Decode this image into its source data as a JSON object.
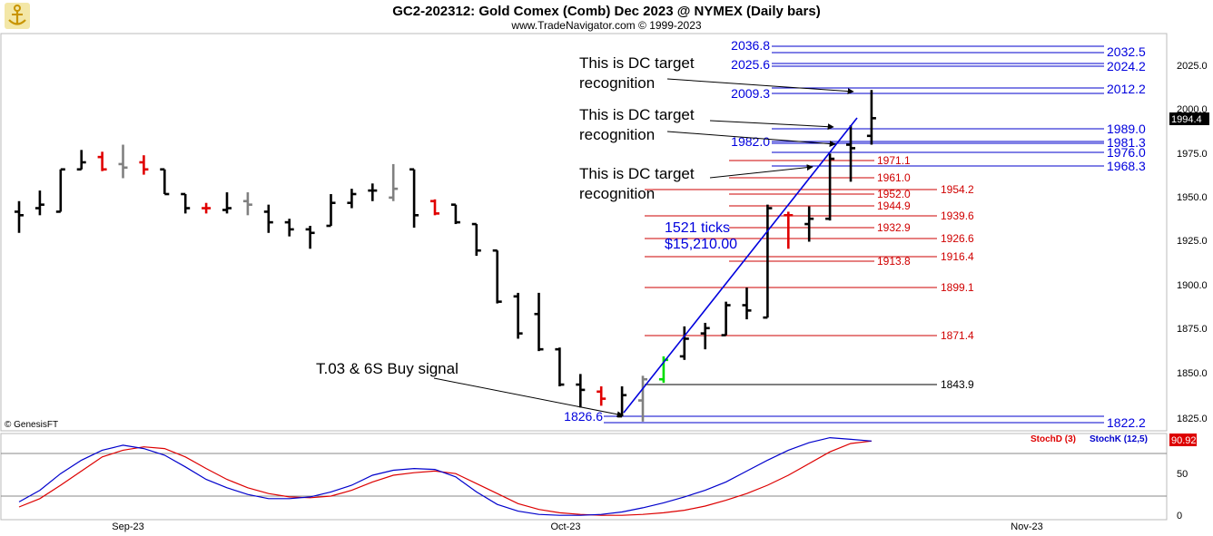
{
  "header": {
    "title": "GC2-202312:  Gold Comex (Comb) Dec 2023 @ NYMEX  (Daily bars)",
    "subtitle": "www.TradeNavigator.com © 1999-2023",
    "logo_icon": "ship-anchor-logo-icon"
  },
  "footer_credit": "© GenesisFT",
  "colors": {
    "bar_default": "#000000",
    "bar_down": "#e00000",
    "bar_up": "#00dd00",
    "bar_neutral": "#808080",
    "target_line": "#0000cc",
    "support_line": "#cc0000",
    "trend_line": "#0000dd",
    "stoch_d": "#dd0000",
    "stoch_k": "#0000cc",
    "last_price_bg": "#000000",
    "stoch_last_bg": "#dd0000"
  },
  "chart_data": [
    {
      "type": "ohlc",
      "yaxis_ticks": [
        "2025.0",
        "2000.0",
        "1975.0",
        "1950.0",
        "1925.0",
        "1900.0",
        "1875.0",
        "1850.0",
        "1825.0"
      ],
      "ylim": [
        1815,
        2043
      ],
      "xaxis_labels": [
        "Sep-23",
        "Oct-23",
        "Nov-23"
      ],
      "last_price": "1994.4",
      "bars": [
        {
          "date": "2023-08-28",
          "o": 1942,
          "h": 1948,
          "l": 1930,
          "c": 1940,
          "color": "black"
        },
        {
          "date": "2023-08-29",
          "o": 1944,
          "h": 1954,
          "l": 1940,
          "c": 1946,
          "color": "black"
        },
        {
          "date": "2023-08-30",
          "o": 1942,
          "h": 1966,
          "l": 1942,
          "c": 1966,
          "color": "black"
        },
        {
          "date": "2023-08-31",
          "o": 1966,
          "h": 1977,
          "l": 1966,
          "c": 1970,
          "color": "black"
        },
        {
          "date": "2023-09-01",
          "o": 1973,
          "h": 1976,
          "l": 1965,
          "c": 1966,
          "color": "red"
        },
        {
          "date": "2023-09-05",
          "o": 1969,
          "h": 1980,
          "l": 1961,
          "c": 1967,
          "color": "gray"
        },
        {
          "date": "2023-09-06",
          "o": 1970,
          "h": 1974,
          "l": 1963,
          "c": 1966,
          "color": "red"
        },
        {
          "date": "2023-09-07",
          "o": 1966,
          "h": 1966,
          "l": 1952,
          "c": 1952,
          "color": "black"
        },
        {
          "date": "2023-09-08",
          "o": 1952,
          "h": 1952,
          "l": 1941,
          "c": 1944,
          "color": "black"
        },
        {
          "date": "2023-09-11",
          "o": 1944,
          "h": 1947,
          "l": 1941,
          "c": 1944,
          "color": "red"
        },
        {
          "date": "2023-09-12",
          "o": 1943,
          "h": 1953,
          "l": 1941,
          "c": 1944,
          "color": "black"
        },
        {
          "date": "2023-09-13",
          "o": 1948,
          "h": 1953,
          "l": 1940,
          "c": 1946,
          "color": "gray"
        },
        {
          "date": "2023-09-14",
          "o": 1942,
          "h": 1946,
          "l": 1930,
          "c": 1936,
          "color": "black"
        },
        {
          "date": "2023-09-15",
          "o": 1936,
          "h": 1938,
          "l": 1928,
          "c": 1932,
          "color": "black"
        },
        {
          "date": "2023-09-18",
          "o": 1932,
          "h": 1934,
          "l": 1921,
          "c": 1930,
          "color": "black"
        },
        {
          "date": "2023-09-19",
          "o": 1934,
          "h": 1952,
          "l": 1934,
          "c": 1947,
          "color": "black"
        },
        {
          "date": "2023-09-20",
          "o": 1947,
          "h": 1955,
          "l": 1944,
          "c": 1952,
          "color": "black"
        },
        {
          "date": "2023-09-21",
          "o": 1954,
          "h": 1958,
          "l": 1948,
          "c": 1954,
          "color": "black"
        },
        {
          "date": "2023-09-22",
          "o": 1950,
          "h": 1969,
          "l": 1948,
          "c": 1955,
          "color": "gray"
        },
        {
          "date": "2023-09-25",
          "o": 1966,
          "h": 1966,
          "l": 1933,
          "c": 1940,
          "color": "black"
        },
        {
          "date": "2023-09-26",
          "o": 1948,
          "h": 1949,
          "l": 1940,
          "c": 1941,
          "color": "red"
        },
        {
          "date": "2023-09-27",
          "o": 1946,
          "h": 1946,
          "l": 1935,
          "c": 1936,
          "color": "black"
        },
        {
          "date": "2023-09-28",
          "o": 1935,
          "h": 1935,
          "l": 1917,
          "c": 1920,
          "color": "black"
        },
        {
          "date": "2023-09-29",
          "o": 1920,
          "h": 1920,
          "l": 1890,
          "c": 1891,
          "color": "black"
        },
        {
          "date": "2023-10-02",
          "o": 1894,
          "h": 1896,
          "l": 1870,
          "c": 1873,
          "color": "black"
        },
        {
          "date": "2023-10-03",
          "o": 1884,
          "h": 1896,
          "l": 1863,
          "c": 1864,
          "color": "black"
        },
        {
          "date": "2023-10-04",
          "o": 1864,
          "h": 1865,
          "l": 1843,
          "c": 1844,
          "color": "black"
        },
        {
          "date": "2023-10-05",
          "o": 1844,
          "h": 1850,
          "l": 1831,
          "c": 1841,
          "color": "black"
        },
        {
          "date": "2023-10-06",
          "o": 1840,
          "h": 1843,
          "l": 1832,
          "c": 1836,
          "color": "red"
        },
        {
          "date": "2023-10-09",
          "o": 1826,
          "h": 1843,
          "l": 1826,
          "c": 1838,
          "color": "black"
        },
        {
          "date": "2023-10-10",
          "o": 1835,
          "h": 1849,
          "l": 1823,
          "c": 1847,
          "color": "gray"
        },
        {
          "date": "2023-10-11",
          "o": 1847,
          "h": 1860,
          "l": 1845,
          "c": 1858,
          "color": "green"
        },
        {
          "date": "2023-10-12",
          "o": 1860,
          "h": 1877,
          "l": 1858,
          "c": 1870,
          "color": "black"
        },
        {
          "date": "2023-10-13",
          "o": 1873,
          "h": 1879,
          "l": 1864,
          "c": 1876,
          "color": "black"
        },
        {
          "date": "2023-10-16",
          "o": 1872,
          "h": 1891,
          "l": 1872,
          "c": 1889,
          "color": "black"
        },
        {
          "date": "2023-10-17",
          "o": 1889,
          "h": 1899,
          "l": 1881,
          "c": 1886,
          "color": "black"
        },
        {
          "date": "2023-10-18",
          "o": 1882,
          "h": 1946,
          "l": 1882,
          "c": 1944,
          "color": "black"
        },
        {
          "date": "2023-10-19",
          "o": 1940,
          "h": 1942,
          "l": 1921,
          "c": 1940,
          "color": "red"
        },
        {
          "date": "2023-10-20",
          "o": 1935,
          "h": 1945,
          "l": 1925,
          "c": 1938,
          "color": "black"
        },
        {
          "date": "2023-10-23",
          "o": 1938,
          "h": 1975,
          "l": 1937,
          "c": 1972,
          "color": "black"
        },
        {
          "date": "2023-10-24",
          "o": 1980,
          "h": 1991,
          "l": 1959,
          "c": 1978,
          "color": "black"
        },
        {
          "date": "2023-10-25",
          "o": 1985,
          "h": 2011,
          "l": 1980,
          "c": 1995,
          "color": "black"
        }
      ]
    },
    {
      "type": "line",
      "title": "StochD (3) / StochK (12,5)",
      "yaxis_ticks": [
        "50",
        "0"
      ],
      "ylim": [
        0,
        100
      ],
      "last_value": "90.92",
      "series": [
        {
          "name": "StochD (3)",
          "color": "#dd0000",
          "values": [
            12,
            22,
            38,
            55,
            72,
            80,
            84,
            82,
            72,
            58,
            45,
            35,
            28,
            24,
            23,
            25,
            32,
            42,
            50,
            53,
            55,
            52,
            40,
            28,
            16,
            9,
            5,
            3,
            2,
            2,
            3,
            5,
            8,
            13,
            20,
            28,
            38,
            50,
            64,
            78,
            88,
            91
          ]
        },
        {
          "name": "StochK (12,5)",
          "color": "#0000cc",
          "values": [
            18,
            32,
            52,
            68,
            80,
            86,
            82,
            74,
            60,
            45,
            35,
            27,
            22,
            22,
            24,
            30,
            38,
            50,
            56,
            58,
            57,
            48,
            30,
            15,
            7,
            3,
            2,
            2,
            3,
            6,
            11,
            17,
            24,
            32,
            42,
            55,
            68,
            80,
            89,
            95,
            93,
            91
          ]
        }
      ]
    }
  ],
  "levels": {
    "blue_left": [
      "2036.8",
      "2025.6",
      "2009.3",
      "1982.0",
      "1826.6"
    ],
    "blue_right": [
      "2032.5",
      "2024.2",
      "2012.2",
      "1989.0",
      "1981.3",
      "1976.0",
      "1968.3",
      "1822.2"
    ],
    "red": [
      "1971.1",
      "1961.0",
      "1954.2",
      "1952.0",
      "1944.9",
      "1939.6",
      "1932.9",
      "1926.6",
      "1916.4",
      "1913.8",
      "1899.1",
      "1871.4"
    ],
    "black": [
      "1843.9"
    ]
  },
  "annotations": {
    "dc_target_1_line1": "This is DC target",
    "dc_target_1_line2": "recognition",
    "dc_target_2_line1": "This is DC target",
    "dc_target_2_line2": "recognition",
    "dc_target_3_line1": "This is DC target",
    "dc_target_3_line2": "recognition",
    "buy_signal": "T.03 & 6S Buy signal",
    "ticks_line1": "1521 ticks",
    "ticks_line2": "$15,210.00"
  },
  "stoch_legend": {
    "d_label": "StochD (3)",
    "k_label": "StochK (12,5)"
  }
}
